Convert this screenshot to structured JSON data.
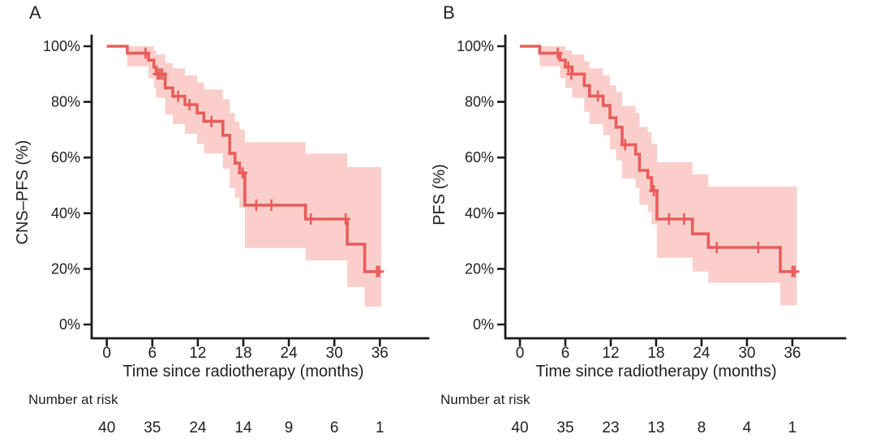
{
  "figure": {
    "background": "#ffffff",
    "curve_color": "#e85d5a",
    "band_color": "#facecb",
    "axis_color": "#1d1a1b",
    "text_color": "#232021"
  },
  "chart_data": [
    {
      "type": "line",
      "subtype": "kaplan_meier_step_with_ci_band",
      "panel_label": "A",
      "ylabel": "CNS–PFS (%)",
      "xlabel": "Time since radiotherapy (months)",
      "risk_caption": "Number at risk",
      "x_ticks": [
        0,
        6,
        12,
        18,
        24,
        30,
        36
      ],
      "x_tick_labels": [
        "0",
        "6",
        "12",
        "18",
        "24",
        "30",
        "36"
      ],
      "y_tick_values": [
        100,
        80,
        60,
        40,
        20,
        0
      ],
      "y_ticks": [
        "100%",
        "80%",
        "60%",
        "40%",
        "20%",
        "0%"
      ],
      "xlim": [
        0,
        42
      ],
      "ylim": [
        0,
        100
      ],
      "grid": false,
      "legend": "none",
      "curve_end_time": 36.2,
      "survival_steps": [
        [
          0,
          100
        ],
        [
          2.7,
          97.5
        ],
        [
          5.5,
          95
        ],
        [
          6.2,
          92.5
        ],
        [
          6.5,
          90
        ],
        [
          7.7,
          85
        ],
        [
          8.7,
          82
        ],
        [
          10.3,
          79
        ],
        [
          11.9,
          76
        ],
        [
          12.8,
          73
        ],
        [
          15.3,
          68
        ],
        [
          16.2,
          61.5
        ],
        [
          16.9,
          58
        ],
        [
          17.5,
          54.5
        ],
        [
          18.2,
          42.9
        ],
        [
          26.2,
          37.9
        ],
        [
          31.7,
          28.9
        ],
        [
          34.0,
          19.0
        ]
      ],
      "censor_marks": [
        [
          5.1,
          97.5
        ],
        [
          6.7,
          90
        ],
        [
          7.0,
          90
        ],
        [
          7.3,
          90
        ],
        [
          9.4,
          82
        ],
        [
          10.9,
          79
        ],
        [
          13.8,
          73
        ],
        [
          17.9,
          54.5
        ],
        [
          19.7,
          42.9
        ],
        [
          21.7,
          42.9
        ],
        [
          26.9,
          37.9
        ],
        [
          31.5,
          37.9
        ],
        [
          35.6,
          19.0
        ],
        [
          35.9,
          19.0
        ]
      ],
      "ci_band_segments": [
        [
          2.7,
          5.5,
          92.8,
          100
        ],
        [
          5.5,
          6.2,
          88.5,
          100
        ],
        [
          6.2,
          6.5,
          85,
          98.5
        ],
        [
          6.5,
          7.7,
          81.5,
          97
        ],
        [
          7.7,
          8.7,
          75.5,
          94
        ],
        [
          8.7,
          10.3,
          72,
          92
        ],
        [
          10.3,
          11.9,
          68.5,
          89.5
        ],
        [
          11.9,
          12.8,
          65,
          87
        ],
        [
          12.8,
          15.3,
          61.5,
          84.5
        ],
        [
          15.3,
          16.2,
          56,
          81
        ],
        [
          16.2,
          16.9,
          49,
          76
        ],
        [
          16.9,
          17.5,
          45.5,
          73
        ],
        [
          17.5,
          18.2,
          42,
          70
        ],
        [
          18.2,
          26.2,
          27.5,
          65.5
        ],
        [
          26.2,
          31.7,
          23,
          61.4
        ],
        [
          31.7,
          34.0,
          13.5,
          56.6
        ],
        [
          34.0,
          36.2,
          6.4,
          56.6
        ]
      ],
      "risk_times": [
        0,
        6,
        12,
        18,
        24,
        30,
        36
      ],
      "risk_numbers": [
        40,
        35,
        24,
        14,
        9,
        6,
        1
      ]
    },
    {
      "type": "line",
      "subtype": "kaplan_meier_step_with_ci_band",
      "panel_label": "B",
      "ylabel": "PFS (%)",
      "xlabel": "Time since radiotherapy (months)",
      "risk_caption": "Number at risk",
      "x_ticks": [
        0,
        6,
        12,
        18,
        24,
        30,
        36
      ],
      "x_tick_labels": [
        "0",
        "6",
        "12",
        "18",
        "24",
        "30",
        "36"
      ],
      "y_tick_values": [
        100,
        80,
        60,
        40,
        20,
        0
      ],
      "y_ticks": [
        "100%",
        "80%",
        "60%",
        "40%",
        "20%",
        "0%"
      ],
      "xlim": [
        0,
        42
      ],
      "ylim": [
        0,
        100
      ],
      "grid": false,
      "legend": "none",
      "curve_end_time": 36.6,
      "survival_steps": [
        [
          0,
          100
        ],
        [
          2.6,
          97.5
        ],
        [
          5.3,
          95
        ],
        [
          6.0,
          92.5
        ],
        [
          6.9,
          90
        ],
        [
          8.5,
          85.9
        ],
        [
          9.2,
          82.1
        ],
        [
          11.0,
          78.7
        ],
        [
          11.9,
          74.3
        ],
        [
          12.7,
          70.9
        ],
        [
          13.5,
          64.6
        ],
        [
          15.3,
          61.2
        ],
        [
          15.8,
          55.4
        ],
        [
          16.9,
          52.8
        ],
        [
          17.4,
          48.1
        ],
        [
          18.1,
          37.9
        ],
        [
          22.8,
          32.6
        ],
        [
          24.9,
          27.7
        ],
        [
          34.4,
          19.0
        ]
      ],
      "censor_marks": [
        [
          5.0,
          97.5
        ],
        [
          6.4,
          92.5
        ],
        [
          6.8,
          90
        ],
        [
          10.3,
          82.1
        ],
        [
          13.9,
          64.6
        ],
        [
          17.7,
          48.1
        ],
        [
          19.7,
          37.9
        ],
        [
          21.7,
          37.9
        ],
        [
          26.0,
          27.7
        ],
        [
          31.5,
          27.7
        ],
        [
          36.0,
          19.0
        ],
        [
          36.3,
          19.0
        ]
      ],
      "ci_band_segments": [
        [
          2.6,
          5.3,
          92.8,
          100
        ],
        [
          5.3,
          6.0,
          88.5,
          100
        ],
        [
          6.0,
          6.9,
          85,
          98.5
        ],
        [
          6.9,
          8.5,
          81.5,
          97
        ],
        [
          8.5,
          9.2,
          76.5,
          94.5
        ],
        [
          9.2,
          11.0,
          72,
          92
        ],
        [
          11.0,
          11.9,
          68,
          89.5
        ],
        [
          11.9,
          12.7,
          63,
          86
        ],
        [
          12.7,
          13.5,
          59,
          83.5
        ],
        [
          13.5,
          15.3,
          52.5,
          78.5
        ],
        [
          15.3,
          15.8,
          49,
          76
        ],
        [
          15.8,
          16.9,
          43,
          71
        ],
        [
          16.9,
          17.4,
          40.5,
          69
        ],
        [
          17.4,
          18.1,
          36,
          65
        ],
        [
          18.1,
          22.8,
          24,
          58.3
        ],
        [
          22.8,
          24.9,
          19,
          54
        ],
        [
          24.9,
          34.4,
          15,
          49.6
        ],
        [
          34.4,
          36.6,
          6.9,
          49.6
        ]
      ],
      "risk_times": [
        0,
        6,
        12,
        18,
        24,
        30,
        36
      ],
      "risk_numbers": [
        40,
        35,
        23,
        13,
        8,
        4,
        1
      ]
    }
  ]
}
